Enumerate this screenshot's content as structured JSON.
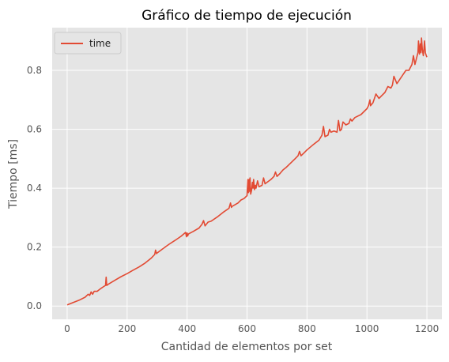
{
  "chart_data": {
    "type": "line",
    "title": "Gráfico de tiempo de ejecución",
    "xlabel": "Cantidad de elementos por set",
    "ylabel": "Tiempo [ms]",
    "xlim": [
      -50,
      1250
    ],
    "ylim": [
      -0.045,
      0.945
    ],
    "x_ticks": [
      0,
      200,
      400,
      600,
      800,
      1000,
      1200
    ],
    "y_ticks": [
      0.0,
      0.2,
      0.4,
      0.6,
      0.8
    ],
    "y_tick_labels": [
      "0.0",
      "0.2",
      "0.4",
      "0.6",
      "0.8"
    ],
    "grid": true,
    "legend_position": "top-left",
    "style": {
      "plot_background": "#e5e5e5",
      "grid_color": "#ffffff",
      "line_color": "#e24a33"
    },
    "series": [
      {
        "name": "time",
        "color": "#e24a33",
        "x": [
          0,
          20,
          40,
          60,
          70,
          75,
          80,
          85,
          90,
          100,
          110,
          120,
          128,
          130,
          132,
          140,
          160,
          180,
          200,
          220,
          240,
          260,
          280,
          292,
          295,
          298,
          300,
          320,
          340,
          360,
          380,
          395,
          398,
          400,
          402,
          405,
          420,
          440,
          450,
          455,
          460,
          470,
          480,
          500,
          520,
          540,
          545,
          548,
          550,
          570,
          580,
          590,
          600,
          603,
          605,
          607,
          608,
          610,
          612,
          615,
          618,
          620,
          622,
          625,
          628,
          630,
          635,
          640,
          650,
          655,
          660,
          680,
          690,
          695,
          700,
          710,
          720,
          730,
          740,
          760,
          770,
          775,
          780,
          790,
          800,
          820,
          840,
          850,
          855,
          860,
          870,
          875,
          880,
          890,
          900,
          905,
          910,
          915,
          920,
          930,
          940,
          945,
          950,
          960,
          970,
          980,
          1000,
          1005,
          1010,
          1012,
          1020,
          1030,
          1040,
          1050,
          1060,
          1070,
          1080,
          1085,
          1090,
          1100,
          1110,
          1120,
          1130,
          1140,
          1150,
          1155,
          1160,
          1165,
          1170,
          1172,
          1175,
          1178,
          1180,
          1182,
          1185,
          1188,
          1190,
          1192,
          1195,
          1198,
          1200
        ],
        "y": [
          0.004,
          0.012,
          0.02,
          0.03,
          0.04,
          0.036,
          0.048,
          0.04,
          0.05,
          0.05,
          0.058,
          0.065,
          0.07,
          0.098,
          0.07,
          0.076,
          0.088,
          0.1,
          0.11,
          0.122,
          0.133,
          0.146,
          0.162,
          0.175,
          0.19,
          0.178,
          0.18,
          0.195,
          0.21,
          0.223,
          0.237,
          0.25,
          0.235,
          0.248,
          0.238,
          0.245,
          0.253,
          0.265,
          0.278,
          0.29,
          0.272,
          0.285,
          0.288,
          0.302,
          0.318,
          0.332,
          0.35,
          0.335,
          0.338,
          0.35,
          0.36,
          0.365,
          0.375,
          0.43,
          0.385,
          0.43,
          0.39,
          0.435,
          0.38,
          0.392,
          0.42,
          0.4,
          0.43,
          0.395,
          0.41,
          0.4,
          0.425,
          0.405,
          0.41,
          0.435,
          0.415,
          0.43,
          0.44,
          0.455,
          0.44,
          0.45,
          0.462,
          0.47,
          0.48,
          0.5,
          0.51,
          0.525,
          0.51,
          0.52,
          0.53,
          0.547,
          0.563,
          0.58,
          0.61,
          0.575,
          0.58,
          0.6,
          0.59,
          0.594,
          0.59,
          0.63,
          0.595,
          0.6,
          0.625,
          0.615,
          0.62,
          0.635,
          0.628,
          0.64,
          0.645,
          0.65,
          0.67,
          0.68,
          0.7,
          0.68,
          0.69,
          0.72,
          0.705,
          0.715,
          0.725,
          0.745,
          0.74,
          0.75,
          0.78,
          0.755,
          0.77,
          0.785,
          0.8,
          0.8,
          0.82,
          0.85,
          0.82,
          0.84,
          0.86,
          0.9,
          0.855,
          0.89,
          0.86,
          0.91,
          0.87,
          0.85,
          0.87,
          0.9,
          0.86,
          0.85,
          0.845
        ]
      }
    ]
  }
}
